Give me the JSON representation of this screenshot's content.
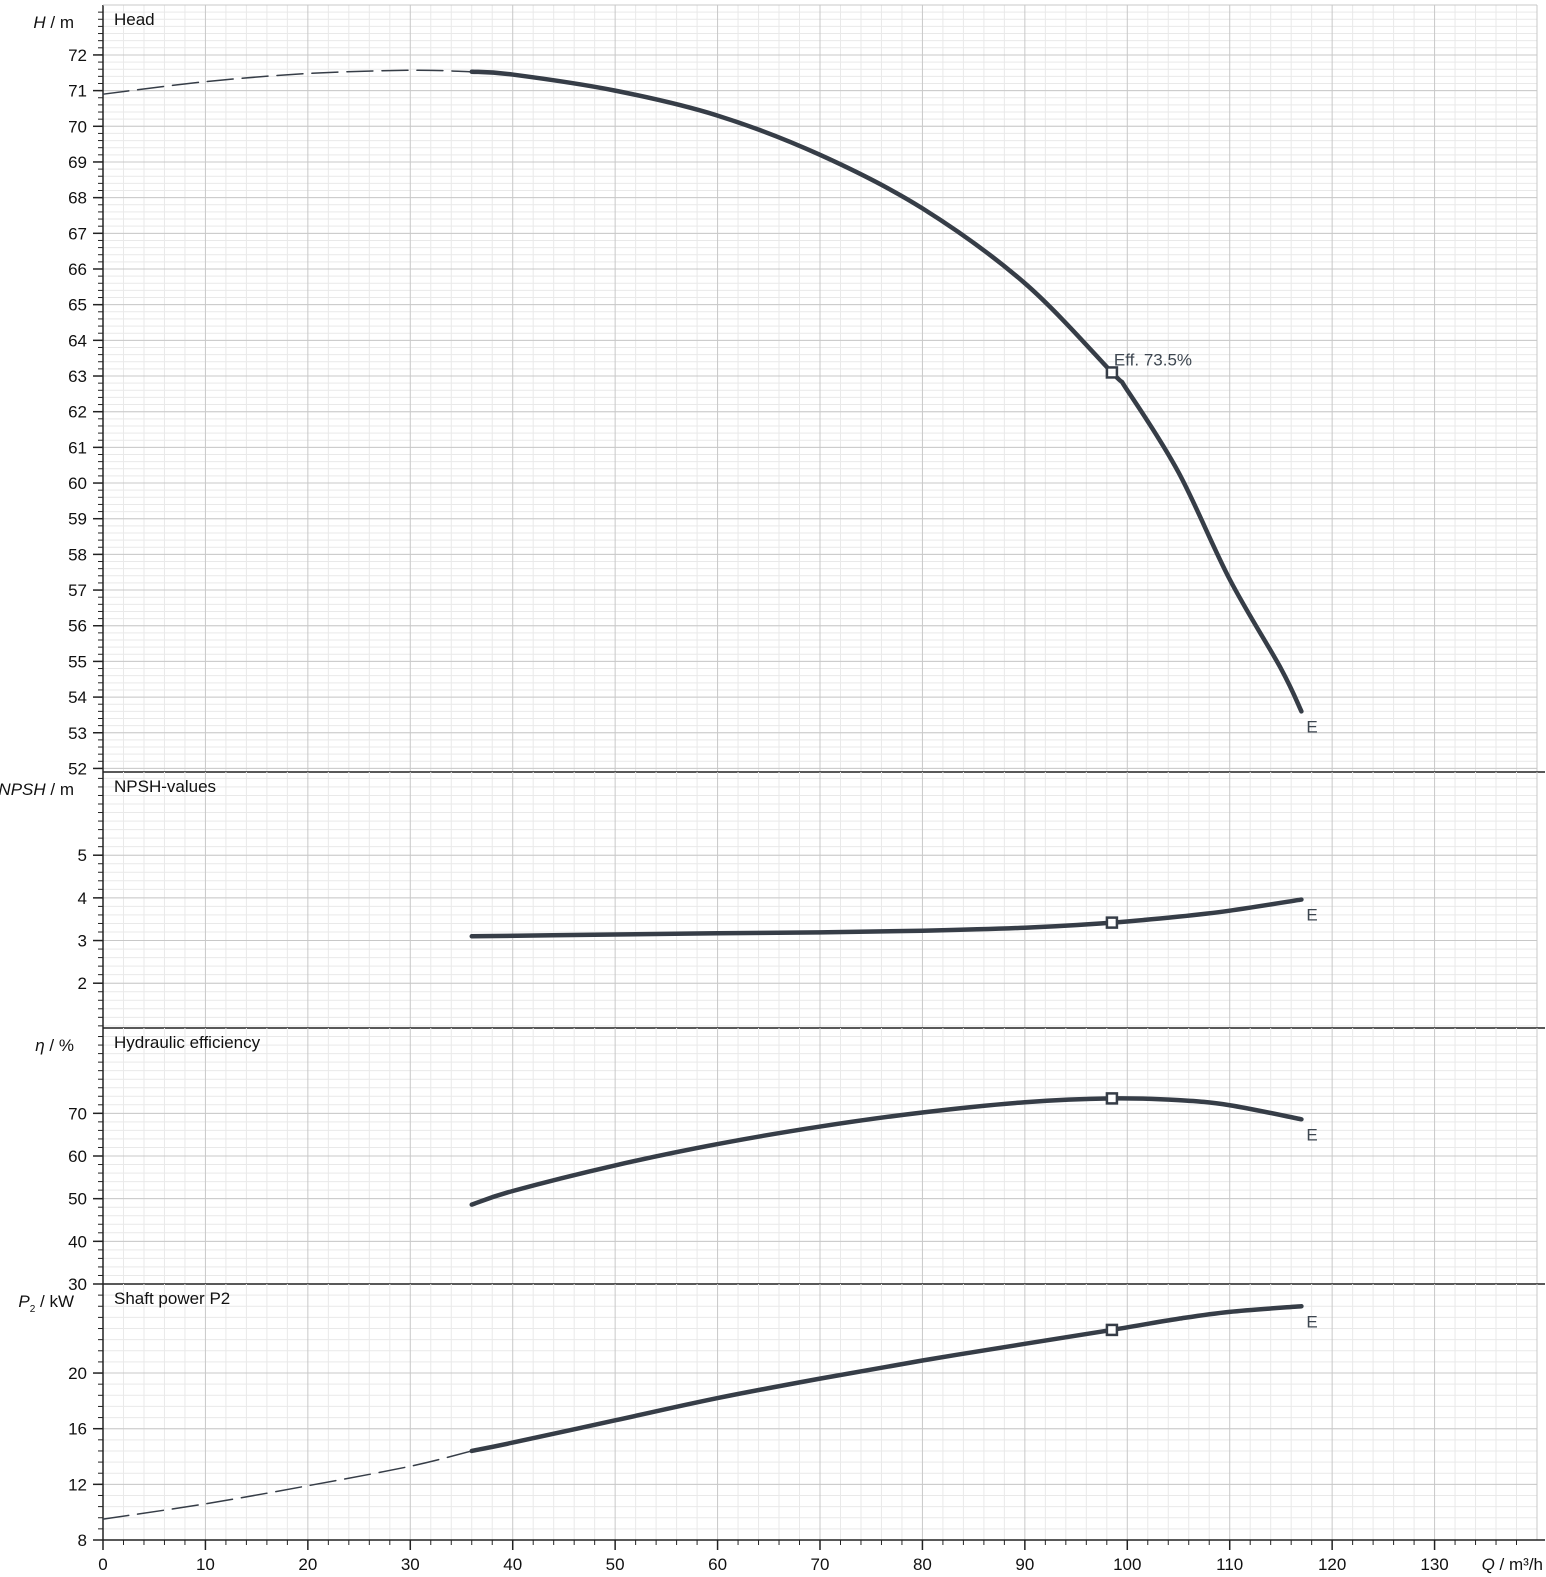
{
  "colors": {
    "curve": "#363d47",
    "grid_major": "#c8c8c8",
    "grid_minor": "#e9e9e9",
    "axis": "#222222"
  },
  "chart_data": [
    {
      "type": "line",
      "title": "Head",
      "ylabel_var": "H",
      "ylabel_unit": "/ m",
      "xlim": [
        0,
        140
      ],
      "ylim": [
        51.9,
        73.4
      ],
      "yticks": [
        52,
        53,
        54,
        55,
        56,
        57,
        58,
        59,
        60,
        61,
        62,
        63,
        64,
        65,
        66,
        67,
        68,
        69,
        70,
        71,
        72
      ],
      "ytick_labels": [
        "52",
        "53",
        "54",
        "55",
        "56",
        "57",
        "58",
        "59",
        "60",
        "61",
        "62",
        "63",
        "64",
        "65",
        "66",
        "67",
        "68",
        "69",
        "70",
        "71",
        "72"
      ],
      "end_label": "E",
      "series": [
        {
          "style": "dashed",
          "x": [
            0,
            10,
            20,
            30,
            36
          ],
          "y": [
            70.9,
            71.25,
            71.48,
            71.57,
            71.53
          ]
        },
        {
          "style": "solid",
          "x": [
            36,
            40,
            50,
            60,
            70,
            80,
            90,
            98.5,
            100,
            105,
            110,
            115,
            117
          ],
          "y": [
            71.53,
            71.45,
            71.0,
            70.3,
            69.2,
            67.7,
            65.6,
            63.1,
            62.6,
            60.3,
            57.3,
            54.8,
            53.6
          ]
        }
      ],
      "markers": [
        {
          "x": 98.5,
          "y": 63.1
        }
      ],
      "annotations": [
        {
          "x": 98.5,
          "y": 63.1,
          "text": "Eff.  73.5%"
        }
      ]
    },
    {
      "type": "line",
      "title": "NPSH-values",
      "ylabel_var": "NPSH",
      "ylabel_unit": "/ m",
      "xlim": [
        0,
        140
      ],
      "ylim": [
        0.95,
        6.95
      ],
      "yticks": [
        2,
        3,
        4,
        5
      ],
      "ytick_labels": [
        "2",
        "3",
        "4",
        "5"
      ],
      "end_label": "E",
      "series": [
        {
          "style": "solid",
          "x": [
            36,
            50,
            60,
            70,
            80,
            90,
            98.5,
            105,
            110,
            117
          ],
          "y": [
            3.1,
            3.14,
            3.17,
            3.19,
            3.23,
            3.3,
            3.42,
            3.56,
            3.7,
            3.96
          ]
        }
      ],
      "markers": [
        {
          "x": 98.5,
          "y": 3.42
        }
      ]
    },
    {
      "type": "line",
      "title": "Hydraulic efficiency",
      "ylabel_var": "η",
      "ylabel_unit": "/ %",
      "xlim": [
        0,
        140
      ],
      "ylim": [
        30,
        90
      ],
      "yticks": [
        30,
        40,
        50,
        60,
        70
      ],
      "ytick_labels": [
        "30",
        "40",
        "50",
        "60",
        "70"
      ],
      "end_label": "E",
      "series": [
        {
          "style": "solid",
          "x": [
            36,
            40,
            50,
            60,
            70,
            80,
            90,
            98.5,
            105,
            110,
            117
          ],
          "y": [
            48.6,
            51.8,
            57.8,
            62.8,
            66.9,
            70.2,
            72.6,
            73.5,
            73.1,
            71.9,
            68.6
          ]
        }
      ],
      "markers": [
        {
          "x": 98.5,
          "y": 73.5
        }
      ]
    },
    {
      "type": "line",
      "title": "Shaft power P2",
      "ylabel_var": "P",
      "ylabel_sub": "2",
      "ylabel_unit": "/ kW",
      "xlim": [
        0,
        140
      ],
      "xlabel_var": "Q",
      "xlabel_unit": "/ m³/h",
      "xticks": [
        0,
        10,
        20,
        30,
        40,
        50,
        60,
        70,
        80,
        90,
        100,
        110,
        120,
        130
      ],
      "xtick_labels": [
        "0",
        "10",
        "20",
        "30",
        "40",
        "50",
        "60",
        "70",
        "80",
        "90",
        "100",
        "110",
        "120",
        "130"
      ],
      "ylim": [
        8,
        26.4
      ],
      "yticks": [
        8,
        12,
        16,
        20
      ],
      "ytick_labels": [
        "8",
        "12",
        "16",
        "20"
      ],
      "end_label": "E",
      "series": [
        {
          "style": "dashed",
          "x": [
            0,
            10,
            20,
            30,
            36
          ],
          "y": [
            9.5,
            10.6,
            11.9,
            13.3,
            14.4
          ]
        },
        {
          "style": "solid",
          "x": [
            36,
            40,
            50,
            60,
            70,
            80,
            90,
            98.5,
            105,
            110,
            117
          ],
          "y": [
            14.4,
            15.0,
            16.6,
            18.2,
            19.6,
            20.9,
            22.1,
            23.1,
            23.9,
            24.4,
            24.8
          ]
        }
      ],
      "markers": [
        {
          "x": 98.5,
          "y": 23.1
        }
      ]
    }
  ]
}
